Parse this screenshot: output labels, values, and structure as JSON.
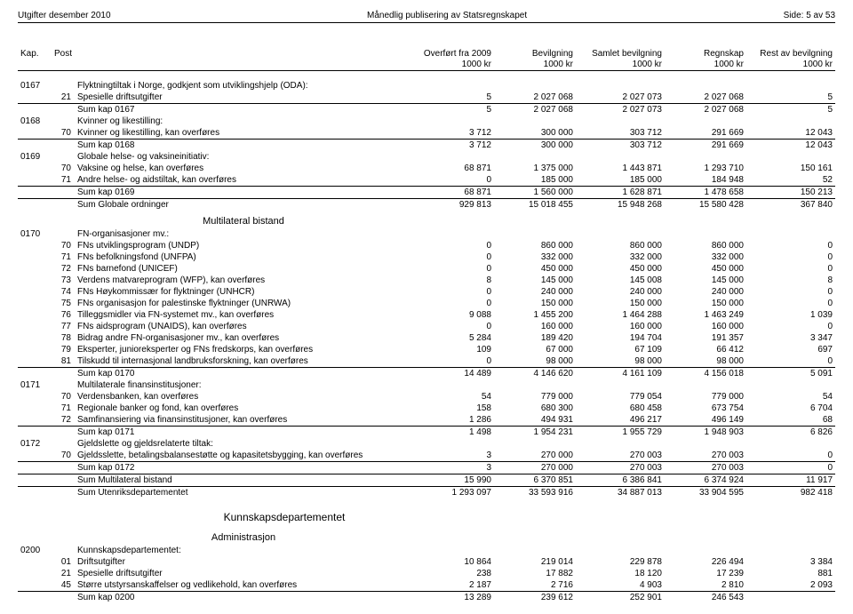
{
  "header": {
    "left": "Utgifter desember 2010",
    "center": "Månedlig publisering av Statsregnskapet",
    "right": "Side: 5 av 53"
  },
  "columns": {
    "kap": "Kap.",
    "post": "Post",
    "c1a": "Overført fra 2009",
    "c1b": "1000 kr",
    "c2a": "Bevilgning",
    "c2b": "1000 kr",
    "c3a": "Samlet bevilgning",
    "c3b": "1000 kr",
    "c4a": "Regnskap",
    "c4b": "1000 kr",
    "c5a": "Rest av bevilgning",
    "c5b": "1000 kr"
  },
  "r": {
    "k0167": {
      "kap": "0167",
      "desc": "Flyktningtiltak i Norge, godkjent som utviklingshjelp (ODA):"
    },
    "p21a": {
      "post": "21",
      "desc": "Spesielle driftsutgifter",
      "v": [
        "5",
        "2 027 068",
        "2 027 073",
        "2 027 068",
        "5"
      ]
    },
    "s0167": {
      "desc": "Sum kap 0167",
      "v": [
        "5",
        "2 027 068",
        "2 027 073",
        "2 027 068",
        "5"
      ]
    },
    "k0168": {
      "kap": "0168",
      "desc": "Kvinner og likestilling:"
    },
    "p70a": {
      "post": "70",
      "desc": "Kvinner og likestilling, kan overføres",
      "v": [
        "3 712",
        "300 000",
        "303 712",
        "291 669",
        "12 043"
      ]
    },
    "s0168": {
      "desc": "Sum kap 0168",
      "v": [
        "3 712",
        "300 000",
        "303 712",
        "291 669",
        "12 043"
      ]
    },
    "k0169": {
      "kap": "0169",
      "desc": "Globale helse- og vaksineinitiativ:"
    },
    "p70b": {
      "post": "70",
      "desc": "Vaksine og helse, kan overføres",
      "v": [
        "68 871",
        "1 375 000",
        "1 443 871",
        "1 293 710",
        "150 161"
      ]
    },
    "p71a": {
      "post": "71",
      "desc": "Andre helse- og aidstiltak, kan overføres",
      "v": [
        "0",
        "185 000",
        "185 000",
        "184 948",
        "52"
      ]
    },
    "s0169": {
      "desc": "Sum kap 0169",
      "v": [
        "68 871",
        "1 560 000",
        "1 628 871",
        "1 478 658",
        "150 213"
      ]
    },
    "sglob": {
      "desc": "Sum Globale ordninger",
      "v": [
        "929 813",
        "15 018 455",
        "15 948 268",
        "15 580 428",
        "367 840"
      ]
    },
    "sub1": "Multilateral bistand",
    "k0170": {
      "kap": "0170",
      "desc": "FN-organisasjoner mv.:"
    },
    "p70c": {
      "post": "70",
      "desc": "FNs utviklingsprogram (UNDP)",
      "v": [
        "0",
        "860 000",
        "860 000",
        "860 000",
        "0"
      ]
    },
    "p71b": {
      "post": "71",
      "desc": "FNs befolkningsfond (UNFPA)",
      "v": [
        "0",
        "332 000",
        "332 000",
        "332 000",
        "0"
      ]
    },
    "p72a": {
      "post": "72",
      "desc": "FNs barnefond (UNICEF)",
      "v": [
        "0",
        "450 000",
        "450 000",
        "450 000",
        "0"
      ]
    },
    "p73a": {
      "post": "73",
      "desc": "Verdens matvareprogram (WFP), kan overføres",
      "v": [
        "8",
        "145 000",
        "145 008",
        "145 000",
        "8"
      ]
    },
    "p74a": {
      "post": "74",
      "desc": "FNs Høykommissær for flyktninger (UNHCR)",
      "v": [
        "0",
        "240 000",
        "240 000",
        "240 000",
        "0"
      ]
    },
    "p75a": {
      "post": "75",
      "desc": "FNs organisasjon for palestinske flyktninger (UNRWA)",
      "v": [
        "0",
        "150 000",
        "150 000",
        "150 000",
        "0"
      ]
    },
    "p76a": {
      "post": "76",
      "desc": "Tilleggsmidler via FN-systemet mv., kan overføres",
      "v": [
        "9 088",
        "1 455 200",
        "1 464 288",
        "1 463 249",
        "1 039"
      ]
    },
    "p77a": {
      "post": "77",
      "desc": "FNs aidsprogram (UNAIDS), kan overføres",
      "v": [
        "0",
        "160 000",
        "160 000",
        "160 000",
        "0"
      ]
    },
    "p78a": {
      "post": "78",
      "desc": "Bidrag andre FN-organisasjoner mv., kan overføres",
      "v": [
        "5 284",
        "189 420",
        "194 704",
        "191 357",
        "3 347"
      ]
    },
    "p79a": {
      "post": "79",
      "desc": "Eksperter, junioreksperter og FNs fredskorps, kan overføres",
      "v": [
        "109",
        "67 000",
        "67 109",
        "66 412",
        "697"
      ]
    },
    "p81a": {
      "post": "81",
      "desc": "Tilskudd til internasjonal landbruksforskning, kan overføres",
      "v": [
        "0",
        "98 000",
        "98 000",
        "98 000",
        "0"
      ]
    },
    "s0170": {
      "desc": "Sum kap 0170",
      "v": [
        "14 489",
        "4 146 620",
        "4 161 109",
        "4 156 018",
        "5 091"
      ]
    },
    "k0171": {
      "kap": "0171",
      "desc": "Multilaterale finansinstitusjoner:"
    },
    "p70d": {
      "post": "70",
      "desc": "Verdensbanken, kan overføres",
      "v": [
        "54",
        "779 000",
        "779 054",
        "779 000",
        "54"
      ]
    },
    "p71c": {
      "post": "71",
      "desc": "Regionale banker og fond, kan overføres",
      "v": [
        "158",
        "680 300",
        "680 458",
        "673 754",
        "6 704"
      ]
    },
    "p72b": {
      "post": "72",
      "desc": "Samfinansiering via finansinstitusjoner, kan overføres",
      "v": [
        "1 286",
        "494 931",
        "496 217",
        "496 149",
        "68"
      ]
    },
    "s0171": {
      "desc": "Sum kap 0171",
      "v": [
        "1 498",
        "1 954 231",
        "1 955 729",
        "1 948 903",
        "6 826"
      ]
    },
    "k0172": {
      "kap": "0172",
      "desc": "Gjeldslette og gjeldsrelaterte tiltak:"
    },
    "p70e": {
      "post": "70",
      "desc": "Gjeldsslette, betalingsbalansestøtte og kapasitetsbygging, kan overføres",
      "v": [
        "3",
        "270 000",
        "270 003",
        "270 003",
        "0"
      ]
    },
    "s0172": {
      "desc": "Sum kap 0172",
      "v": [
        "3",
        "270 000",
        "270 003",
        "270 003",
        "0"
      ]
    },
    "smult": {
      "desc": "Sum Multilateral bistand",
      "v": [
        "15 990",
        "6 370 851",
        "6 386 841",
        "6 374 924",
        "11 917"
      ]
    },
    "sutd": {
      "desc": "Sum Utenriksdepartementet",
      "v": [
        "1 293 097",
        "33 593 916",
        "34 887 013",
        "33 904 595",
        "982 418"
      ]
    },
    "dep": "Kunnskapsdepartementet",
    "sub2": "Administrasjon",
    "k0200": {
      "kap": "0200",
      "desc": "Kunnskapsdepartementet:"
    },
    "p01a": {
      "post": "01",
      "desc": "Driftsutgifter",
      "v": [
        "10 864",
        "219 014",
        "229 878",
        "226 494",
        "3 384"
      ]
    },
    "p21b": {
      "post": "21",
      "desc": "Spesielle driftsutgifter",
      "v": [
        "238",
        "17 882",
        "18 120",
        "17 239",
        "881"
      ]
    },
    "p45a": {
      "post": "45",
      "desc": "Større utstyrsanskaffelser og vedlikehold, kan overføres",
      "v": [
        "2 187",
        "2 716",
        "4 903",
        "2 810",
        "2 093"
      ]
    },
    "s0200": {
      "desc": "Sum kap 0200",
      "v": [
        "13 289",
        "239 612",
        "252 901",
        "246 543",
        ""
      ]
    }
  }
}
